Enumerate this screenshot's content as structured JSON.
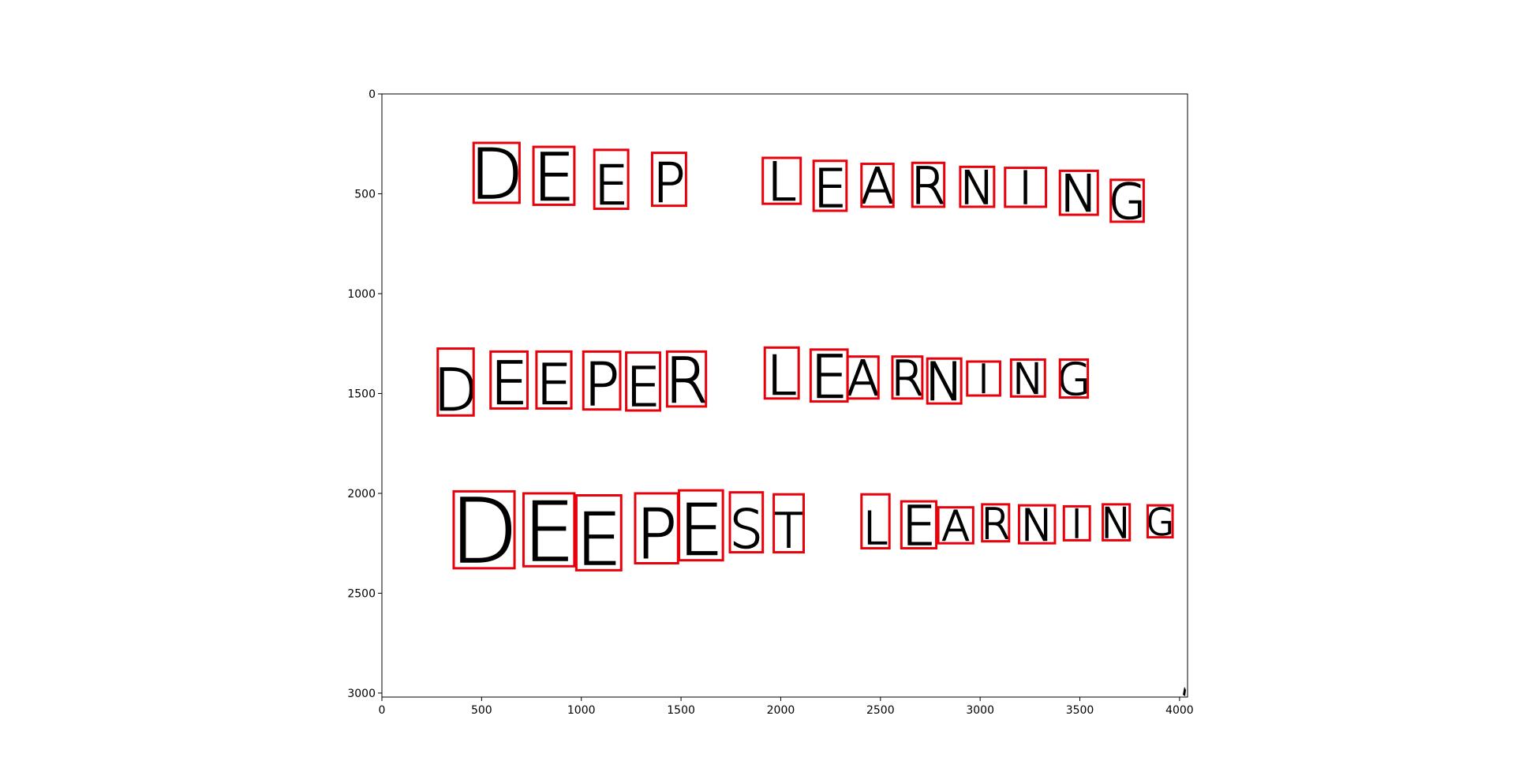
{
  "chart_data": {
    "type": "image-with-bounding-boxes",
    "title": "",
    "xlabel": "",
    "ylabel": "",
    "xlim": [
      0,
      4040
    ],
    "ylim": [
      3020,
      0
    ],
    "grid": false,
    "xticks": [
      0,
      500,
      1000,
      1500,
      2000,
      2500,
      3000,
      3500,
      4000
    ],
    "yticks": [
      0,
      500,
      1000,
      1500,
      2000,
      2500,
      3000
    ],
    "box_color": "#e8000b",
    "ink_color": "#000000",
    "boxes": [
      {
        "char": "D",
        "x0": 460,
        "y0": 245,
        "x1": 690,
        "y1": 545
      },
      {
        "char": "E",
        "x0": 760,
        "y0": 265,
        "x1": 965,
        "y1": 555
      },
      {
        "char": "E",
        "x0": 1065,
        "y0": 280,
        "x1": 1235,
        "y1": 575
      },
      {
        "char": "P",
        "x0": 1355,
        "y0": 295,
        "x1": 1525,
        "y1": 560
      },
      {
        "char": "L",
        "x0": 1910,
        "y0": 320,
        "x1": 2100,
        "y1": 550
      },
      {
        "char": "E",
        "x0": 2165,
        "y0": 335,
        "x1": 2330,
        "y1": 585
      },
      {
        "char": "A",
        "x0": 2405,
        "y0": 350,
        "x1": 2565,
        "y1": 565
      },
      {
        "char": "R",
        "x0": 2660,
        "y0": 345,
        "x1": 2820,
        "y1": 565
      },
      {
        "char": "N",
        "x0": 2900,
        "y0": 365,
        "x1": 3070,
        "y1": 565
      },
      {
        "char": "I",
        "x0": 3125,
        "y0": 370,
        "x1": 3330,
        "y1": 565
      },
      {
        "char": "N",
        "x0": 3400,
        "y0": 385,
        "x1": 3590,
        "y1": 605
      },
      {
        "char": "G",
        "x0": 3655,
        "y0": 430,
        "x1": 3820,
        "y1": 640
      },
      {
        "char": "D",
        "x0": 280,
        "y0": 1275,
        "x1": 460,
        "y1": 1610
      },
      {
        "char": "E",
        "x0": 545,
        "y0": 1290,
        "x1": 730,
        "y1": 1575
      },
      {
        "char": "E",
        "x0": 775,
        "y0": 1290,
        "x1": 950,
        "y1": 1575
      },
      {
        "char": "P",
        "x0": 1010,
        "y0": 1290,
        "x1": 1195,
        "y1": 1580
      },
      {
        "char": "E",
        "x0": 1225,
        "y0": 1295,
        "x1": 1395,
        "y1": 1585
      },
      {
        "char": "R",
        "x0": 1430,
        "y0": 1290,
        "x1": 1625,
        "y1": 1565
      },
      {
        "char": "L",
        "x0": 1920,
        "y0": 1270,
        "x1": 2090,
        "y1": 1525
      },
      {
        "char": "E",
        "x0": 2150,
        "y0": 1280,
        "x1": 2335,
        "y1": 1540
      },
      {
        "char": "A",
        "x0": 2335,
        "y0": 1315,
        "x1": 2490,
        "y1": 1525
      },
      {
        "char": "R",
        "x0": 2560,
        "y0": 1315,
        "x1": 2710,
        "y1": 1525
      },
      {
        "char": "N",
        "x0": 2735,
        "y0": 1325,
        "x1": 2905,
        "y1": 1550
      },
      {
        "char": "I",
        "x0": 2935,
        "y0": 1340,
        "x1": 3100,
        "y1": 1510
      },
      {
        "char": "N",
        "x0": 3155,
        "y0": 1330,
        "x1": 3325,
        "y1": 1515
      },
      {
        "char": "G",
        "x0": 3400,
        "y0": 1330,
        "x1": 3540,
        "y1": 1520
      },
      {
        "char": "D",
        "x0": 360,
        "y0": 1990,
        "x1": 665,
        "y1": 2375
      },
      {
        "char": "E",
        "x0": 710,
        "y0": 2000,
        "x1": 965,
        "y1": 2365
      },
      {
        "char": "E",
        "x0": 975,
        "y0": 2010,
        "x1": 1200,
        "y1": 2385
      },
      {
        "char": "P",
        "x0": 1270,
        "y0": 2000,
        "x1": 1485,
        "y1": 2350
      },
      {
        "char": "E",
        "x0": 1490,
        "y0": 1985,
        "x1": 1710,
        "y1": 2335
      },
      {
        "char": "S",
        "x0": 1745,
        "y0": 1995,
        "x1": 1910,
        "y1": 2295
      },
      {
        "char": "T",
        "x0": 1965,
        "y0": 2005,
        "x1": 2115,
        "y1": 2295
      },
      {
        "char": "L",
        "x0": 2405,
        "y0": 2005,
        "x1": 2545,
        "y1": 2275
      },
      {
        "char": "E",
        "x0": 2605,
        "y0": 2040,
        "x1": 2780,
        "y1": 2275
      },
      {
        "char": "A",
        "x0": 2790,
        "y0": 2070,
        "x1": 2965,
        "y1": 2250
      },
      {
        "char": "R",
        "x0": 3010,
        "y0": 2055,
        "x1": 3145,
        "y1": 2240
      },
      {
        "char": "N",
        "x0": 3195,
        "y0": 2060,
        "x1": 3375,
        "y1": 2250
      },
      {
        "char": "I",
        "x0": 3420,
        "y0": 2065,
        "x1": 3550,
        "y1": 2235
      },
      {
        "char": "N",
        "x0": 3615,
        "y0": 2055,
        "x1": 3750,
        "y1": 2235
      },
      {
        "char": "G",
        "x0": 3840,
        "y0": 2060,
        "x1": 3965,
        "y1": 2220
      }
    ]
  }
}
